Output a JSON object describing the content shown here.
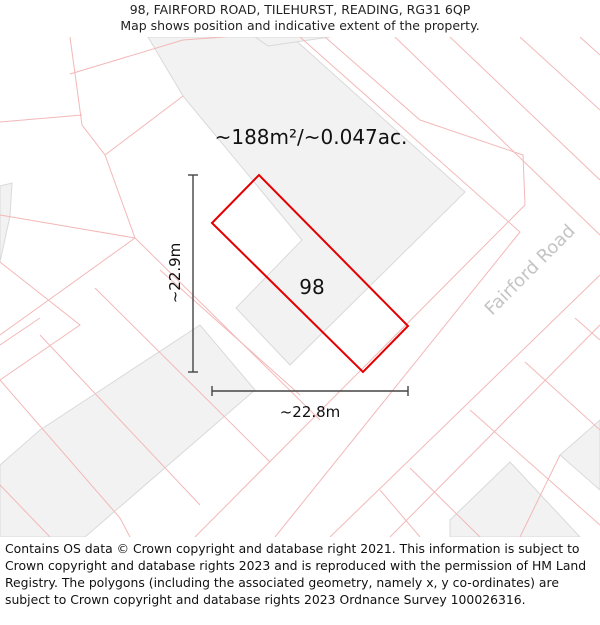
{
  "header": {
    "address": "98, FAIRFORD ROAD, TILEHURST, READING, RG31 6QP",
    "subtitle": "Map shows position and indicative extent of the property."
  },
  "map": {
    "area_label": "~188m²/~0.047ac.",
    "plot_number": "98",
    "road_name": "Fairford Road",
    "dimension_vertical": "~22.9m",
    "dimension_horizontal": "~22.8m",
    "colors": {
      "boundary": "#e30000",
      "parcel_lines": "#f3b8b8",
      "building_fill": "#f2f2f2",
      "building_stroke": "#d9d9d9",
      "road_text": "#c4c4c4",
      "dimension_line": "#444444"
    }
  },
  "footer": {
    "attribution": "Contains OS data © Crown copyright and database right 2021. This information is subject to Crown copyright and database rights 2023 and is reproduced with the permission of HM Land Registry. The polygons (including the associated geometry, namely x, y co-ordinates) are subject to Crown copyright and database rights 2023 Ordnance Survey 100026316."
  }
}
